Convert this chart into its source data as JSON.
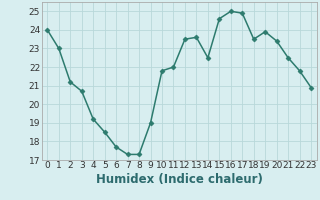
{
  "x": [
    0,
    1,
    2,
    3,
    4,
    5,
    6,
    7,
    8,
    9,
    10,
    11,
    12,
    13,
    14,
    15,
    16,
    17,
    18,
    19,
    20,
    21,
    22,
    23
  ],
  "y": [
    24,
    23,
    21.2,
    20.7,
    19.2,
    18.5,
    17.7,
    17.3,
    17.3,
    19.0,
    21.8,
    22.0,
    23.5,
    23.6,
    22.5,
    24.6,
    25.0,
    24.9,
    23.5,
    23.9,
    23.4,
    22.5,
    21.8,
    20.9
  ],
  "line_color": "#2d7b6e",
  "marker": "D",
  "marker_size": 2.5,
  "bg_color": "#d8eef0",
  "grid_color": "#b8d8da",
  "xlabel": "Humidex (Indice chaleur)",
  "ylim": [
    17,
    25.5
  ],
  "xlim": [
    -0.5,
    23.5
  ],
  "yticks": [
    17,
    18,
    19,
    20,
    21,
    22,
    23,
    24,
    25
  ],
  "xticks": [
    0,
    1,
    2,
    3,
    4,
    5,
    6,
    7,
    8,
    9,
    10,
    11,
    12,
    13,
    14,
    15,
    16,
    17,
    18,
    19,
    20,
    21,
    22,
    23
  ],
  "tick_fontsize": 6.5,
  "xlabel_fontsize": 8.5,
  "linewidth": 1.1
}
